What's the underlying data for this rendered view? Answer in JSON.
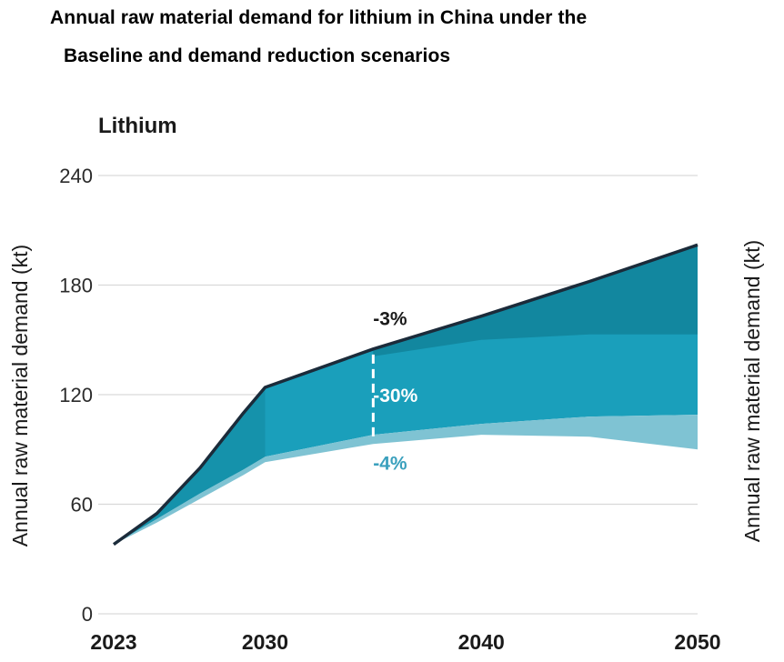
{
  "title_line1": "Annual raw material demand for lithium in China under the",
  "title_line2": "Baseline and demand reduction scenarios",
  "chart_data": {
    "type": "area",
    "subtitle": "Lithium",
    "ylabel_left": "Annual raw material demand (kt)",
    "ylabel_right": "Annual raw material demand (kt)",
    "ylim": [
      0,
      240
    ],
    "y_ticks": [
      "0",
      "60",
      "120",
      "180",
      "240"
    ],
    "x_ticks": [
      "2023",
      "2030",
      "2040",
      "2050"
    ],
    "grid": "horizontal",
    "colors": {
      "band_top": "#12879f",
      "band_middle": "#1a9fbb",
      "band_bottom": "#7fc3d3",
      "baseline_line": "#1b2b3a",
      "grid": "#d9d9d9",
      "marker": "#ffffff"
    },
    "series": [
      {
        "name": "Baseline",
        "x": [
          2023,
          2025,
          2027,
          2029,
          2030,
          2035,
          2040,
          2045,
          2050
        ],
        "values": [
          38,
          55,
          80,
          110,
          124,
          145,
          163,
          182,
          202
        ]
      },
      {
        "x": [
          2035,
          2040,
          2045,
          2050
        ],
        "values": [
          141,
          150,
          153,
          153
        ]
      },
      {
        "x": [
          2023,
          2025,
          2027,
          2029,
          2030,
          2035,
          2040,
          2045,
          2050
        ],
        "values": [
          38,
          52,
          66,
          79,
          86,
          98,
          104,
          108,
          109
        ]
      },
      {
        "x": [
          2023,
          2025,
          2027,
          2029,
          2030,
          2035,
          2040,
          2045,
          2050
        ],
        "values": [
          38,
          50,
          63,
          76,
          83,
          93,
          98,
          97,
          90
        ]
      }
    ],
    "annotations": [
      {
        "text": "-3%",
        "x": 2035.5,
        "y": 162,
        "color": "#1a1a1a"
      },
      {
        "text": "-30%",
        "x": 2035.5,
        "y": 120,
        "color": "#ffffff"
      },
      {
        "text": "-4%",
        "x": 2035.5,
        "y": 83,
        "color": "#3aa0bd"
      }
    ],
    "marker_x": 2035
  }
}
